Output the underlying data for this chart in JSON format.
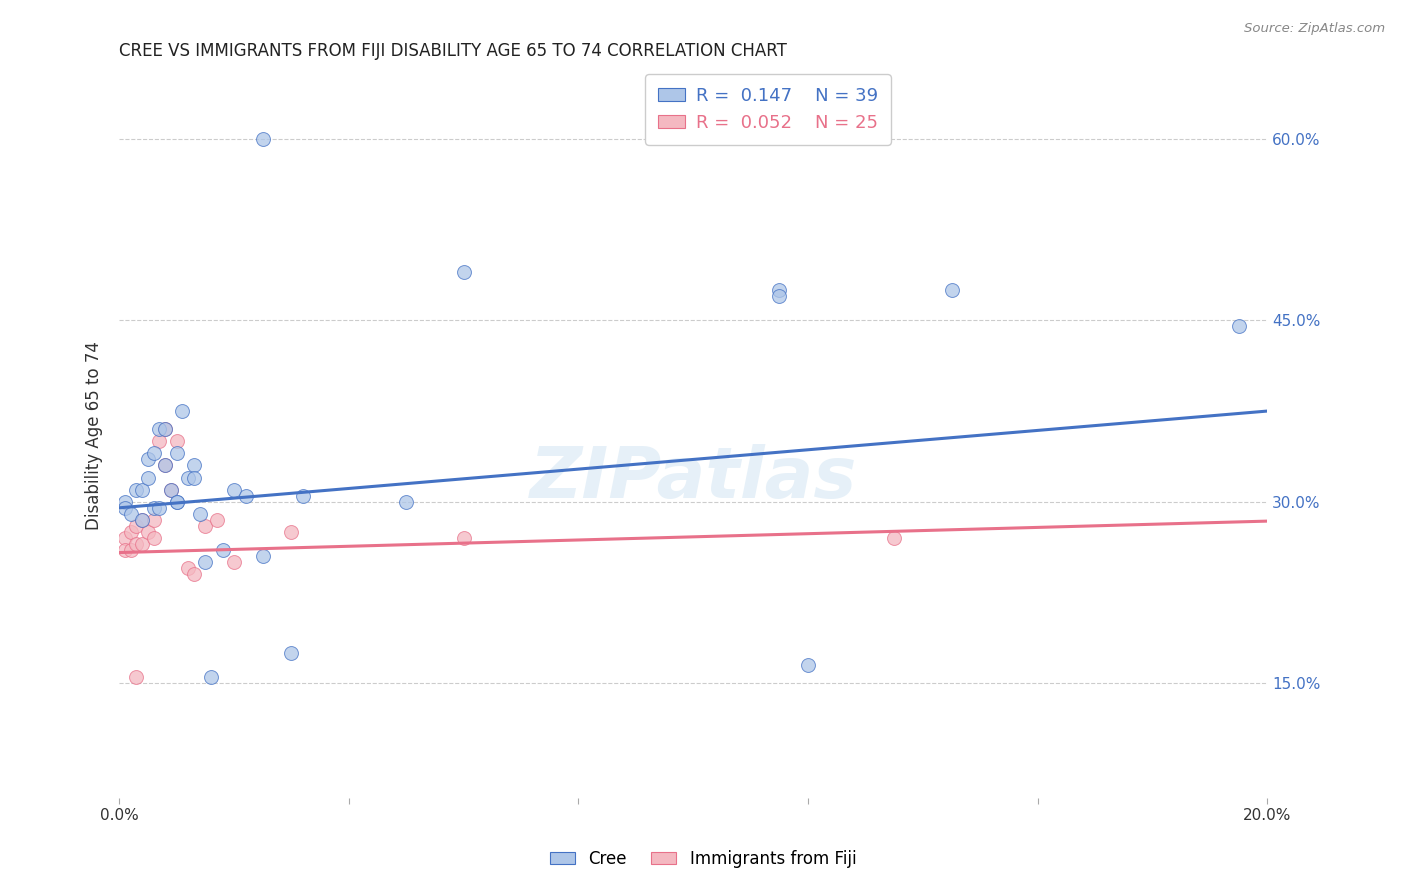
{
  "title": "CREE VS IMMIGRANTS FROM FIJI DISABILITY AGE 65 TO 74 CORRELATION CHART",
  "source": "Source: ZipAtlas.com",
  "ylabel": "Disability Age 65 to 74",
  "cree_color": "#aec6e8",
  "fiji_color": "#f4b8c1",
  "cree_line_color": "#4472c4",
  "fiji_line_color": "#e8718a",
  "cree_R": 0.147,
  "cree_N": 39,
  "fiji_R": 0.052,
  "fiji_N": 25,
  "xlim": [
    0.0,
    0.2
  ],
  "ylim": [
    0.055,
    0.655
  ],
  "yticks": [
    0.15,
    0.3,
    0.45,
    0.6
  ],
  "ytick_labels": [
    "15.0%",
    "30.0%",
    "45.0%",
    "60.0%"
  ],
  "xticks": [
    0.0,
    0.04,
    0.08,
    0.12,
    0.16,
    0.2
  ],
  "xtick_labels": [
    "0.0%",
    "",
    "",
    "",
    "",
    "20.0%"
  ],
  "cree_line_x0": 0.0,
  "cree_line_y0": 0.295,
  "cree_line_x1": 0.2,
  "cree_line_y1": 0.375,
  "fiji_line_x0": 0.0,
  "fiji_line_y0": 0.258,
  "fiji_line_x1": 0.2,
  "fiji_line_y1": 0.284,
  "cree_x": [
    0.001,
    0.001,
    0.002,
    0.003,
    0.004,
    0.004,
    0.005,
    0.005,
    0.006,
    0.006,
    0.007,
    0.008,
    0.008,
    0.009,
    0.01,
    0.01,
    0.011,
    0.012,
    0.013,
    0.014,
    0.015,
    0.016,
    0.018,
    0.02,
    0.022,
    0.025,
    0.03,
    0.032,
    0.05,
    0.115,
    0.12,
    0.145,
    0.195,
    0.025,
    0.06,
    0.115,
    0.007,
    0.01,
    0.013
  ],
  "cree_y": [
    0.3,
    0.295,
    0.29,
    0.31,
    0.31,
    0.285,
    0.32,
    0.335,
    0.34,
    0.295,
    0.36,
    0.36,
    0.33,
    0.31,
    0.34,
    0.3,
    0.375,
    0.32,
    0.33,
    0.29,
    0.25,
    0.155,
    0.26,
    0.31,
    0.305,
    0.255,
    0.175,
    0.305,
    0.3,
    0.475,
    0.165,
    0.475,
    0.445,
    0.6,
    0.49,
    0.47,
    0.295,
    0.3,
    0.32
  ],
  "fiji_x": [
    0.001,
    0.001,
    0.002,
    0.002,
    0.003,
    0.003,
    0.004,
    0.004,
    0.005,
    0.006,
    0.006,
    0.007,
    0.008,
    0.008,
    0.009,
    0.01,
    0.012,
    0.013,
    0.015,
    0.017,
    0.02,
    0.03,
    0.06,
    0.135,
    0.003
  ],
  "fiji_y": [
    0.27,
    0.26,
    0.275,
    0.26,
    0.28,
    0.265,
    0.285,
    0.265,
    0.275,
    0.285,
    0.27,
    0.35,
    0.36,
    0.33,
    0.31,
    0.35,
    0.245,
    0.24,
    0.28,
    0.285,
    0.25,
    0.275,
    0.27,
    0.27,
    0.155
  ],
  "watermark": "ZIPatlas"
}
